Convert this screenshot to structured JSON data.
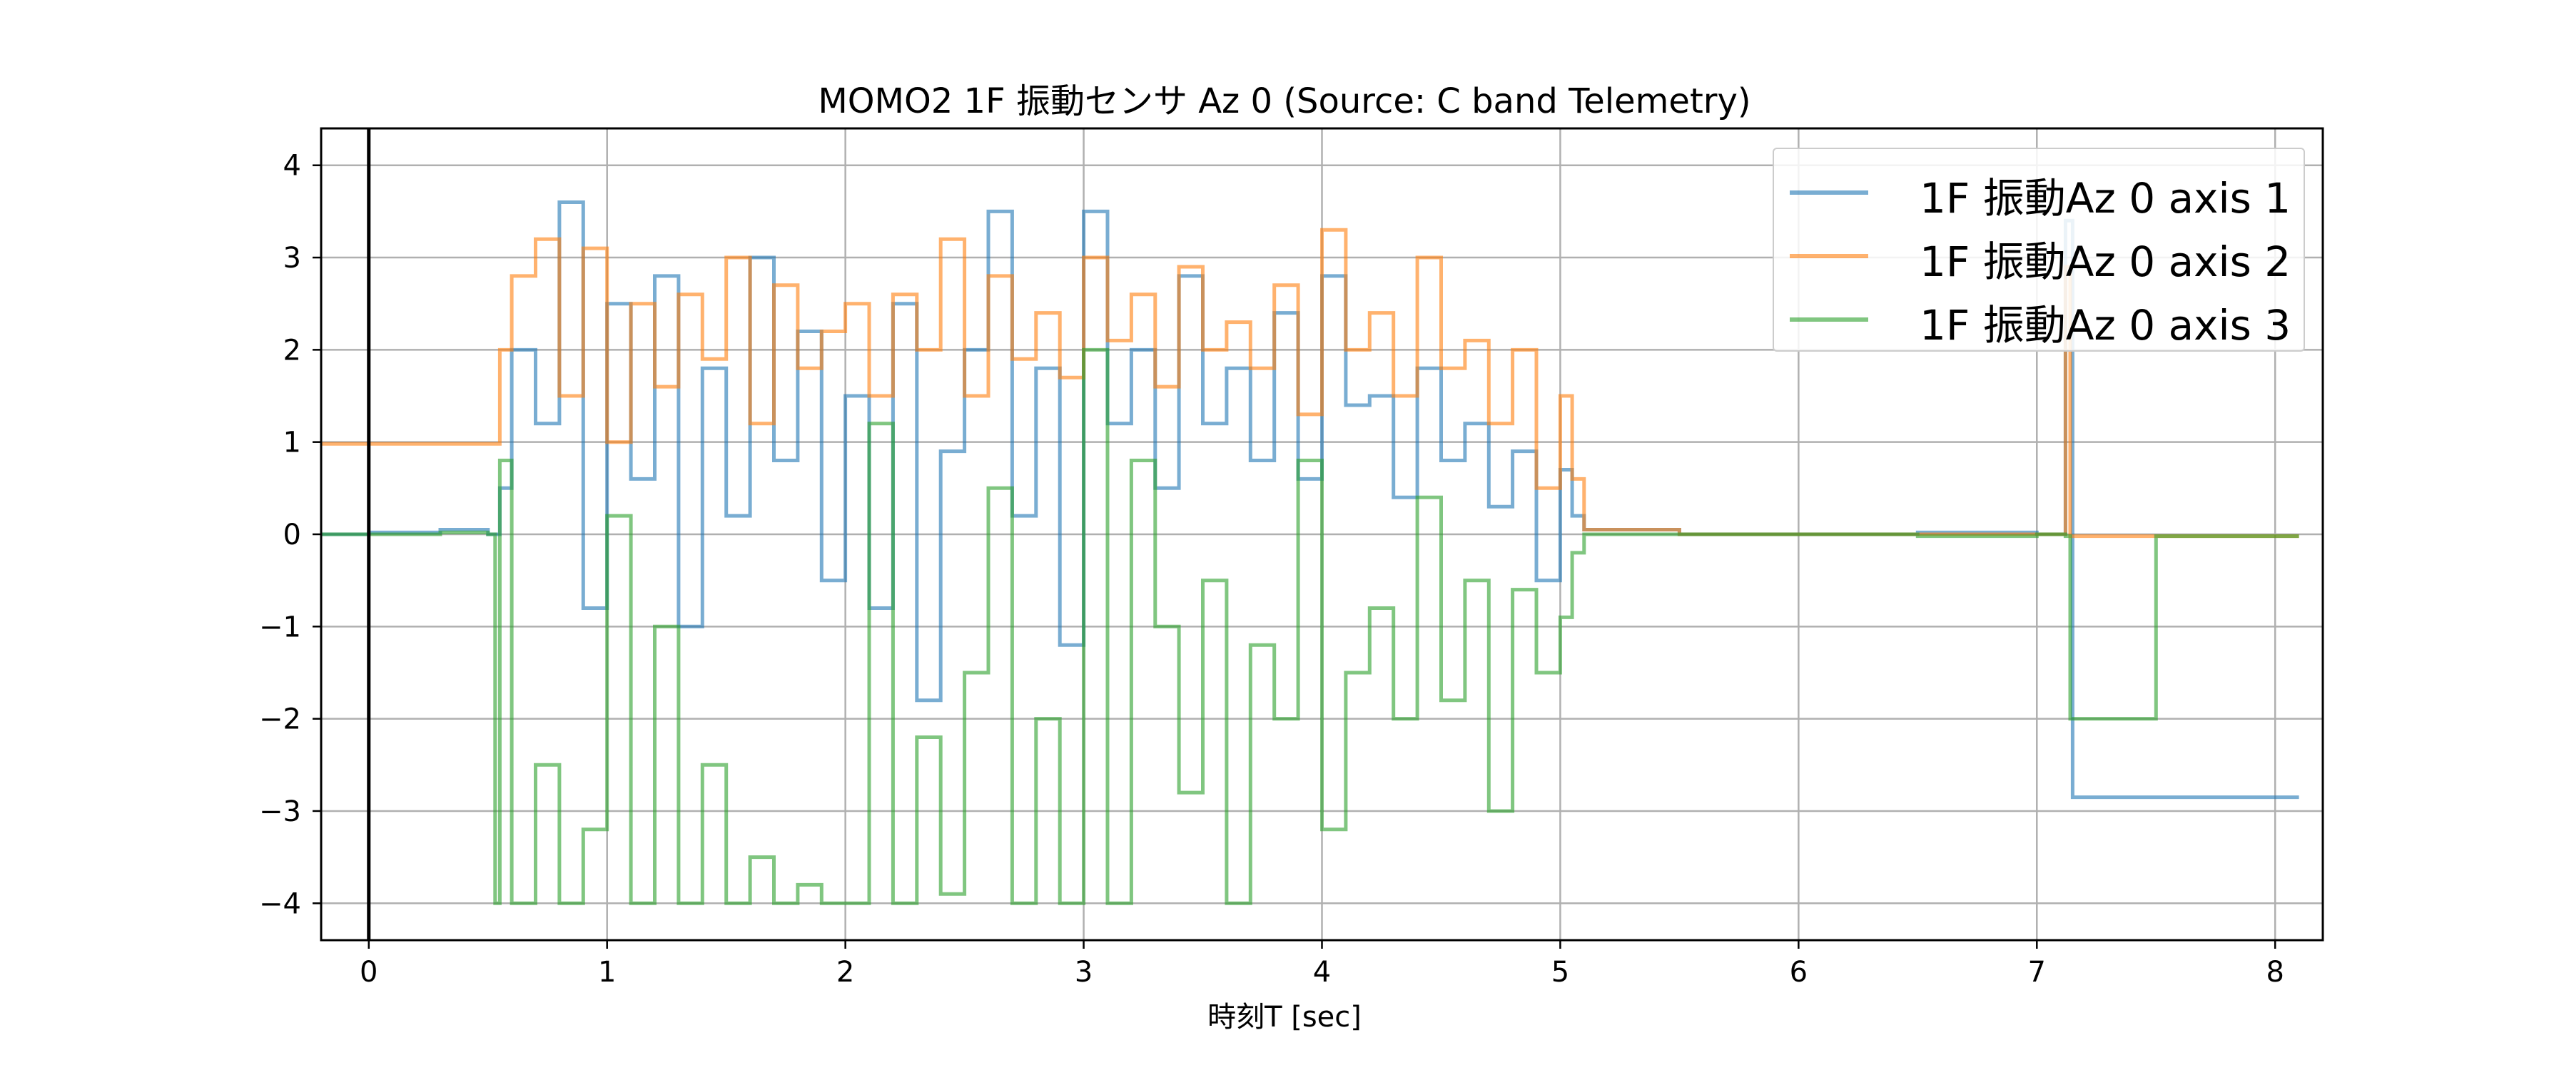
{
  "chart_data": {
    "type": "line",
    "title": "MOMO2 1F 振動センサ Az 0 (Source: C band Telemetry)",
    "xlabel": "時刻T [sec]",
    "ylabel": "",
    "xlim": [
      -0.2,
      8.2
    ],
    "ylim": [
      -4.4,
      4.4
    ],
    "xticks": [
      0,
      1,
      2,
      3,
      4,
      5,
      6,
      7,
      8
    ],
    "yticks": [
      -4,
      -3,
      -2,
      -1,
      0,
      1,
      2,
      3,
      4
    ],
    "ytick_labels": [
      "−4",
      "−3",
      "−2",
      "−1",
      "0",
      "1",
      "2",
      "3",
      "4"
    ],
    "grid": true,
    "legend_position": "top-right",
    "vertical_line_at_x": 0,
    "series": [
      {
        "name": "1F 振動Az 0 axis 1",
        "color": "#1f77b4",
        "x": [
          -0.2,
          0.0,
          0.3,
          0.5,
          0.55,
          0.6,
          0.7,
          0.8,
          0.9,
          1.0,
          1.1,
          1.2,
          1.3,
          1.4,
          1.5,
          1.6,
          1.7,
          1.8,
          1.9,
          2.0,
          2.1,
          2.2,
          2.3,
          2.4,
          2.5,
          2.6,
          2.7,
          2.8,
          2.9,
          3.0,
          3.1,
          3.2,
          3.3,
          3.4,
          3.5,
          3.6,
          3.7,
          3.8,
          3.9,
          4.0,
          4.1,
          4.2,
          4.3,
          4.4,
          4.5,
          4.6,
          4.7,
          4.8,
          4.9,
          5.0,
          5.05,
          5.1,
          5.5,
          6.0,
          6.5,
          7.0,
          7.12,
          7.15,
          7.5,
          8.1
        ],
        "values": [
          0.0,
          0.02,
          0.05,
          0.0,
          0.5,
          2.0,
          1.2,
          3.6,
          -0.8,
          2.5,
          0.6,
          2.8,
          -1.0,
          1.8,
          0.2,
          3.0,
          0.8,
          2.2,
          -0.5,
          1.5,
          -0.8,
          2.5,
          -1.8,
          0.9,
          2.0,
          3.5,
          0.2,
          1.8,
          -1.2,
          3.5,
          1.2,
          2.0,
          0.5,
          2.8,
          1.2,
          1.8,
          0.8,
          2.4,
          0.6,
          2.8,
          1.4,
          1.5,
          0.4,
          1.8,
          0.8,
          1.2,
          0.3,
          0.9,
          -0.5,
          0.7,
          0.2,
          0.05,
          0.0,
          0.0,
          0.02,
          0.0,
          3.4,
          -2.85,
          -2.85,
          -2.85
        ]
      },
      {
        "name": "1F 振動Az 0 axis 2",
        "color": "#ff7f0e",
        "x": [
          -0.2,
          0.0,
          0.3,
          0.52,
          0.55,
          0.6,
          0.7,
          0.8,
          0.9,
          1.0,
          1.1,
          1.2,
          1.3,
          1.4,
          1.5,
          1.6,
          1.7,
          1.8,
          1.9,
          2.0,
          2.1,
          2.2,
          2.3,
          2.4,
          2.5,
          2.6,
          2.7,
          2.8,
          2.9,
          3.0,
          3.1,
          3.2,
          3.3,
          3.4,
          3.5,
          3.6,
          3.7,
          3.8,
          3.9,
          4.0,
          4.1,
          4.2,
          4.3,
          4.4,
          4.5,
          4.6,
          4.7,
          4.8,
          4.9,
          5.0,
          5.05,
          5.1,
          5.5,
          6.0,
          6.5,
          7.0,
          7.12,
          7.14,
          7.5,
          8.1
        ],
        "values": [
          0.98,
          0.98,
          0.98,
          0.98,
          2.0,
          2.8,
          3.2,
          1.5,
          3.1,
          1.0,
          2.5,
          1.6,
          2.6,
          1.9,
          3.0,
          1.2,
          2.7,
          1.8,
          2.2,
          2.5,
          1.5,
          2.6,
          2.0,
          3.2,
          1.5,
          2.8,
          1.9,
          2.4,
          1.7,
          3.0,
          2.1,
          2.6,
          1.6,
          2.9,
          2.0,
          2.3,
          1.8,
          2.7,
          1.3,
          3.3,
          2.0,
          2.4,
          1.5,
          3.0,
          1.8,
          2.1,
          1.2,
          2.0,
          0.5,
          1.5,
          0.6,
          0.05,
          0.0,
          0.0,
          0.0,
          0.0,
          2.9,
          -0.02,
          -0.02,
          -0.02
        ]
      },
      {
        "name": "1F 振動Az 0 axis 3",
        "color": "#2ca02c",
        "x": [
          -0.2,
          0.0,
          0.3,
          0.5,
          0.53,
          0.55,
          0.6,
          0.7,
          0.8,
          0.9,
          1.0,
          1.1,
          1.2,
          1.3,
          1.4,
          1.5,
          1.6,
          1.7,
          1.8,
          1.9,
          2.0,
          2.1,
          2.2,
          2.3,
          2.4,
          2.5,
          2.6,
          2.7,
          2.8,
          2.9,
          3.0,
          3.1,
          3.2,
          3.3,
          3.4,
          3.5,
          3.6,
          3.7,
          3.8,
          3.9,
          4.0,
          4.1,
          4.2,
          4.3,
          4.4,
          4.5,
          4.6,
          4.7,
          4.8,
          4.9,
          5.0,
          5.05,
          5.1,
          5.5,
          6.0,
          6.5,
          7.0,
          7.12,
          7.14,
          7.5,
          8.1
        ],
        "values": [
          0.0,
          0.0,
          0.02,
          0.0,
          -4.0,
          0.8,
          -4.0,
          -2.5,
          -4.0,
          -3.2,
          0.2,
          -4.0,
          -1.0,
          -4.0,
          -2.5,
          -4.0,
          -3.5,
          -4.0,
          -3.8,
          -4.0,
          -4.0,
          1.2,
          -4.0,
          -2.2,
          -3.9,
          -1.5,
          0.5,
          -4.0,
          -2.0,
          -4.0,
          2.0,
          -4.0,
          0.8,
          -1.0,
          -2.8,
          -0.5,
          -4.0,
          -1.2,
          -2.0,
          0.8,
          -3.2,
          -1.5,
          -0.8,
          -2.0,
          0.4,
          -1.8,
          -0.5,
          -3.0,
          -0.6,
          -1.5,
          -0.9,
          -0.2,
          0.0,
          0.0,
          0.0,
          -0.02,
          0.0,
          -0.02,
          -2.0,
          -0.02,
          -0.02
        ]
      }
    ]
  }
}
